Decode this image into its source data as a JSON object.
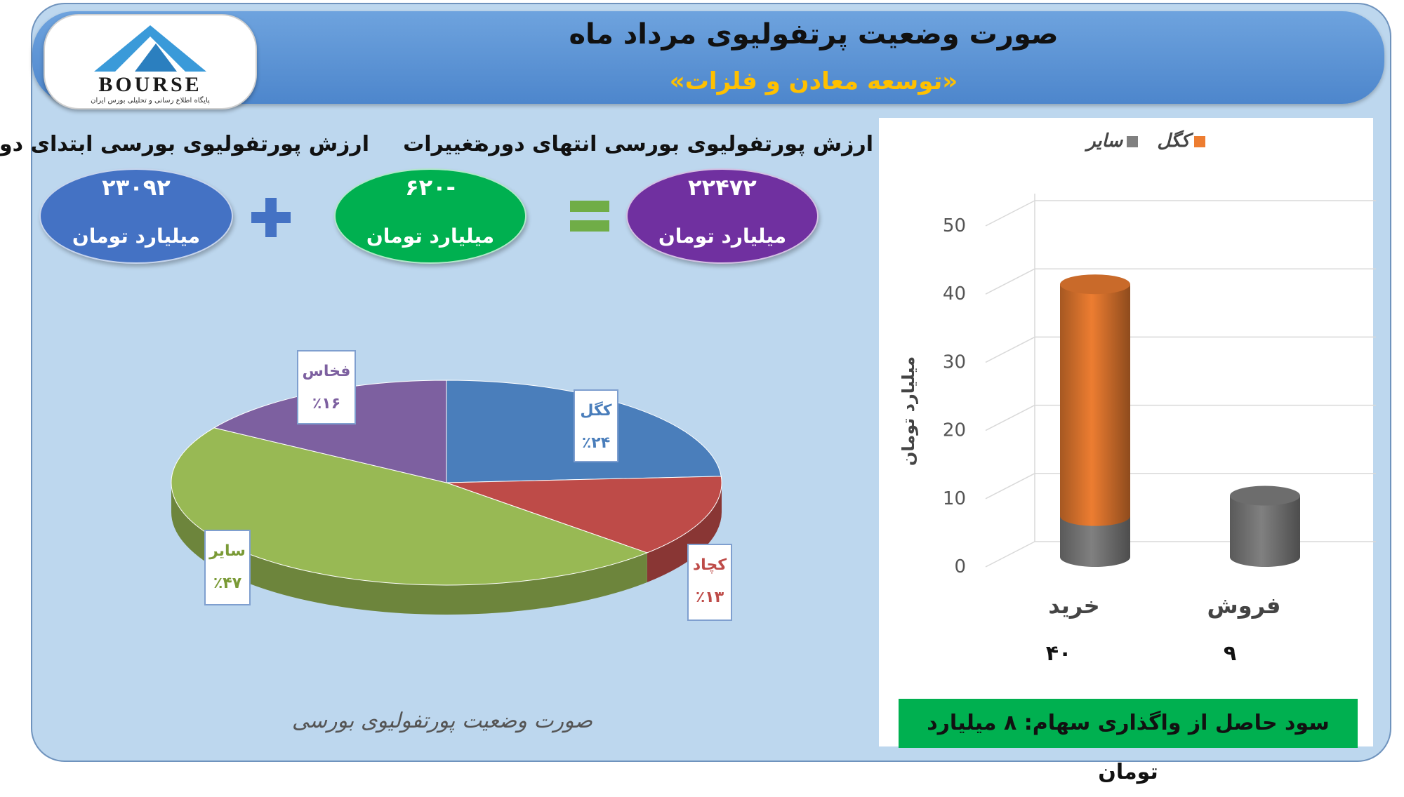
{
  "header": {
    "title": "صورت وضعیت پرتفولیوی مرداد ماه",
    "subtitle": "«توسعه معادن و فلزات»"
  },
  "logo": {
    "word": "BOURSE",
    "tagline": "پایگاه اطلاع رسانی و تحلیلی بورس ایران"
  },
  "summary": {
    "start": {
      "label": "ارزش پورتفولیوی بورسی ابتدای دوره",
      "value": "۲۳۰۹۲",
      "unit": "میلیارد تومان"
    },
    "change": {
      "label": "تغییرات",
      "value": "-۶۲۰",
      "unit": "میلیارد تومان"
    },
    "end": {
      "label": "ارزش پورتفولیوی بورسی انتهای دوره",
      "value": "۲۲۴۷۲",
      "unit": "میلیارد تومان"
    }
  },
  "colors": {
    "start": "#4472c4",
    "change": "#00b050",
    "end": "#7030a0",
    "plus": "#4472c4",
    "equals": "#70ad47",
    "kegl": "#ed7d31",
    "other": "#808080"
  },
  "chart_data": [
    {
      "type": "pie",
      "title": "صورت وضعیت پورتفولیوی بورسی",
      "slices": [
        {
          "name": "کگل",
          "value": 24,
          "label": "٪۲۴",
          "color": "#4a7ebb"
        },
        {
          "name": "کچاد",
          "value": 13,
          "label": "٪۱۳",
          "color": "#be4b48"
        },
        {
          "name": "سایر",
          "value": 47,
          "label": "٪۴۷",
          "color": "#98b954"
        },
        {
          "name": "فخاس",
          "value": 16,
          "label": "٪۱۶",
          "color": "#7d60a0"
        }
      ]
    },
    {
      "type": "bar",
      "stacked": true,
      "categories": [
        "خرید",
        "فروش"
      ],
      "category_values": [
        "۴۰",
        "۹"
      ],
      "series": [
        {
          "name": "سایر",
          "values": [
            6,
            9
          ],
          "color": "#808080"
        },
        {
          "name": "کگل",
          "values": [
            34,
            0
          ],
          "color": "#ed7d31"
        }
      ],
      "ylabel": "میلیارد تومان",
      "ylim": [
        0,
        50
      ],
      "yticks": [
        0,
        10,
        20,
        30,
        40,
        50
      ],
      "legend_position": "top",
      "grid": true
    }
  ],
  "profit_note": "سود حاصل از واگذاری سهام: ۸ میلیارد تومان"
}
